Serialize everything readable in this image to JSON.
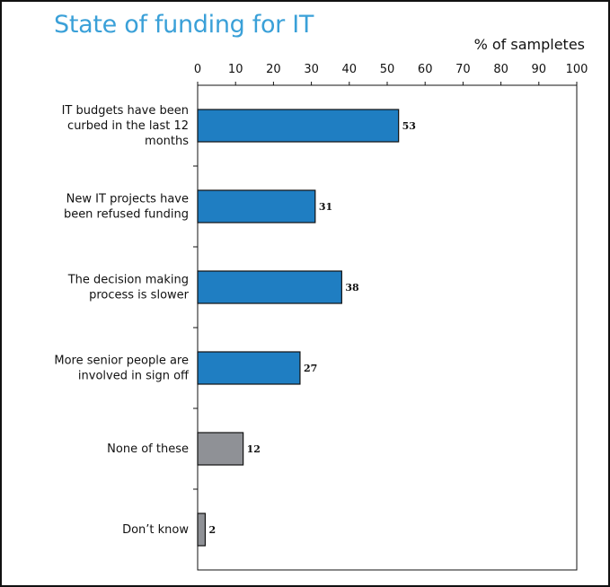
{
  "chart_data": {
    "type": "bar",
    "orientation": "horizontal",
    "title": "State of funding for IT",
    "xlabel": "% of sampletes",
    "ylabel": "",
    "xlim": [
      0,
      100
    ],
    "x_ticks": [
      "0",
      "10",
      "20",
      "30",
      "40",
      "50",
      "60",
      "70",
      "80",
      "90",
      "100"
    ],
    "axis_position": "top",
    "grid": false,
    "categories": [
      [
        "IT budgets have been",
        "curbed in the last 12",
        "months"
      ],
      [
        "New IT projects have",
        "been refused funding"
      ],
      [
        "The decision making",
        "process is slower"
      ],
      [
        "More senior people are",
        "involved in sign off"
      ],
      [
        "None of these"
      ],
      [
        "Don’t know"
      ]
    ],
    "values": [
      53,
      31,
      38,
      27,
      12,
      2
    ],
    "value_labels": [
      "53",
      "31",
      "38",
      "27",
      "12",
      "2"
    ],
    "bar_colors": [
      "#1f7ec2",
      "#1f7ec2",
      "#1f7ec2",
      "#1f7ec2",
      "#8f9196",
      "#8f9196"
    ]
  }
}
